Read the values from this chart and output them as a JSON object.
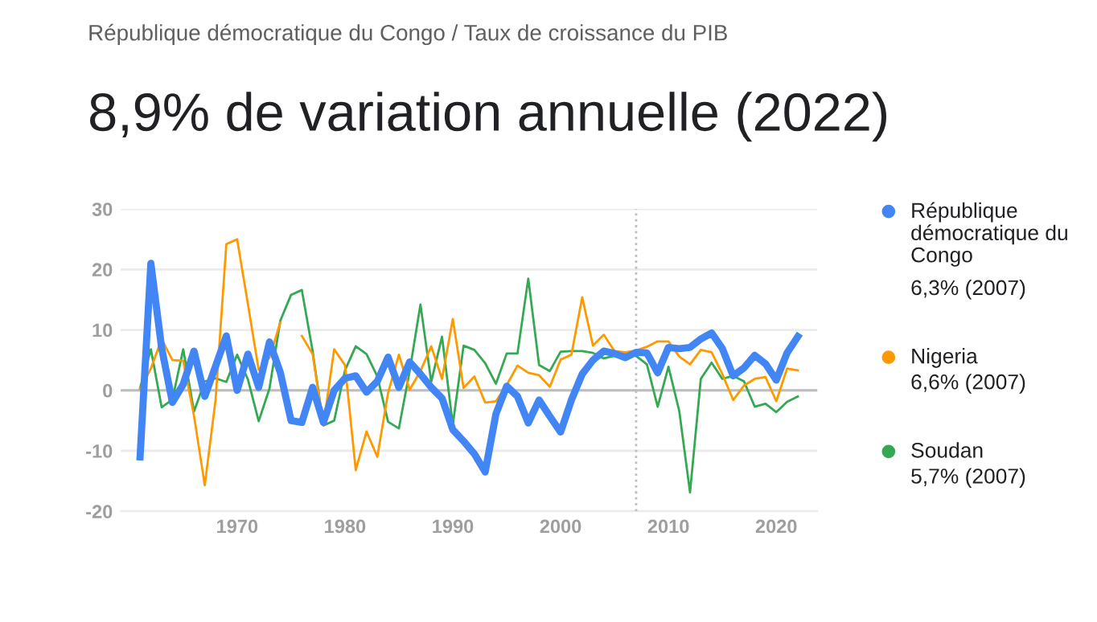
{
  "chart_data": {
    "type": "line",
    "subtitle": "République démocratique du Congo / Taux de croissance du PIB",
    "title": "8,9% de variation annuelle (2022)",
    "x": [
      1961,
      1962,
      1963,
      1964,
      1965,
      1966,
      1967,
      1968,
      1969,
      1970,
      1971,
      1972,
      1973,
      1974,
      1975,
      1976,
      1977,
      1978,
      1979,
      1980,
      1981,
      1982,
      1983,
      1984,
      1985,
      1986,
      1987,
      1988,
      1989,
      1990,
      1991,
      1992,
      1993,
      1994,
      1995,
      1996,
      1997,
      1998,
      1999,
      2000,
      2001,
      2002,
      2003,
      2004,
      2005,
      2006,
      2007,
      2008,
      2009,
      2010,
      2011,
      2012,
      2013,
      2014,
      2015,
      2016,
      2017,
      2018,
      2019,
      2020,
      2021,
      2022
    ],
    "series": [
      {
        "name": "République démocratique du Congo",
        "color": "#4285f4",
        "values": [
          -11,
          21,
          7,
          -2,
          1,
          6.5,
          -1,
          4,
          9,
          0,
          6,
          0.5,
          8,
          3,
          -5,
          -5.3,
          0.5,
          -5.3,
          0,
          2,
          2.4,
          -0.3,
          1.5,
          5.5,
          0.5,
          4.7,
          2.7,
          0.5,
          -1.3,
          -6.5,
          -8.4,
          -10.5,
          -13.5,
          -3.9,
          0.7,
          -1,
          -5.4,
          -1.6,
          -4.3,
          -6.9,
          -1.6,
          2.7,
          5,
          6.5,
          6.1,
          5.4,
          6.3,
          6.2,
          2.9,
          7.1,
          6.9,
          7.1,
          8.5,
          9.5,
          6.9,
          2.4,
          3.7,
          5.8,
          4.4,
          1.7,
          6.2,
          8.9
        ]
      },
      {
        "name": "Nigeria",
        "color": "#ff9900",
        "values": [
          0.2,
          3.6,
          8.5,
          5,
          4.9,
          -4.2,
          -15.7,
          -1.6,
          24.2,
          25,
          14.3,
          3.4,
          5.4,
          11.2,
          null,
          9,
          6,
          -5.8,
          6.8,
          4.2,
          -13.2,
          -6.8,
          -11,
          -0.4,
          5.9,
          0.1,
          3.2,
          7.3,
          1.9,
          11.8,
          0.4,
          2.3,
          -2,
          -1.8,
          0.9,
          4.1,
          2.9,
          2.5,
          0.6,
          5.1,
          5.9,
          15.4,
          7.4,
          9.2,
          6.5,
          6.3,
          6.6,
          7.2,
          8.1,
          8.1,
          5.6,
          4.3,
          6.7,
          6.3,
          2.7,
          -1.6,
          0.8,
          1.9,
          2.2,
          -1.8,
          3.6,
          3.3
        ]
      },
      {
        "name": "Soudan",
        "color": "#34a853",
        "values": [
          0.4,
          6.8,
          -2.8,
          -1.5,
          6.8,
          -3.5,
          1.5,
          2,
          1.4,
          5.9,
          1.8,
          -5.1,
          0.3,
          11.5,
          15.8,
          16.6,
          6.5,
          -5.8,
          -5,
          3.3,
          7.3,
          6,
          2.3,
          -5.2,
          -6.3,
          3.2,
          14.2,
          1.4,
          8.9,
          -5.7,
          7.4,
          6.7,
          4.5,
          1.1,
          6.1,
          6.1,
          18.5,
          4.2,
          3.2,
          6.4,
          6.5,
          6.5,
          6.2,
          5.3,
          5.7,
          6.2,
          5.7,
          4.3,
          -2.7,
          3.9,
          -3.4,
          -16.9,
          1.9,
          4.6,
          1.9,
          2.4,
          1.5,
          -2.7,
          -2.2,
          -3.6,
          -1.9,
          -1.0
        ]
      }
    ],
    "annotations": [
      "6,3% (2007)",
      "6,6% (2007)",
      "5,7% (2007)"
    ],
    "xlim": [
      1959.2,
      2023.8
    ],
    "xticks": [
      1970,
      1980,
      1990,
      2000,
      2010,
      2020
    ],
    "ylim": [
      -20,
      30
    ],
    "yticks": [
      -20,
      -10,
      0,
      10,
      20,
      30
    ],
    "ref_lines": [
      {
        "axis": "y",
        "value": 0,
        "color": "#bdbdbd",
        "line_style": "solid"
      },
      {
        "axis": "x",
        "value": 2007,
        "color": "#bdbdbd",
        "line_style": "dotted"
      }
    ],
    "grid": "y",
    "legend": "right",
    "marker": "none",
    "line_style": "solid"
  }
}
